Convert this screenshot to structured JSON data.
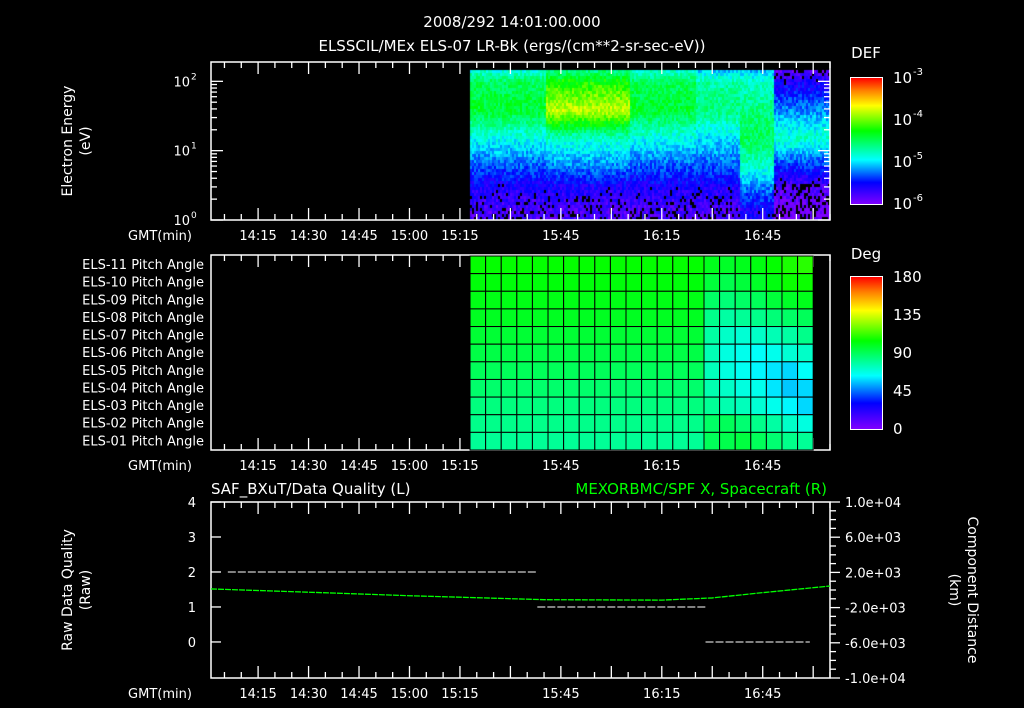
{
  "header": {
    "datetime": "2008/292 14:01:00.000",
    "subtitle": "ELSSCIL/MEx ELS-07 LR-Bk  (ergs/(cm**2-sr-sec-eV))"
  },
  "colors": {
    "background": "#000000",
    "axis": "#ffffff",
    "green_series": "#00ff00"
  },
  "time_axis": {
    "label": "GMT(min)",
    "start_min": 841,
    "end_min": 1025,
    "tick_labels": [
      {
        "t": 855,
        "label": "14:15"
      },
      {
        "t": 870,
        "label": "14:30"
      },
      {
        "t": 885,
        "label": "14:45"
      },
      {
        "t": 900,
        "label": "15:00"
      },
      {
        "t": 915,
        "label": "15:15"
      },
      {
        "t": 945,
        "label": "15:45"
      },
      {
        "t": 975,
        "label": "16:15"
      },
      {
        "t": 1005,
        "label": "16:45"
      }
    ]
  },
  "chart_data": [
    {
      "type": "heatmap",
      "name": "electron-spectrogram",
      "ylabel": "Electron Energy",
      "yunit": "(eV)",
      "yscale": "log",
      "ylim": [
        1,
        190
      ],
      "ytick_labels": [
        {
          "exp": 0,
          "label": "10",
          "sup": "0"
        },
        {
          "exp": 1,
          "label": "10",
          "sup": "1"
        },
        {
          "exp": 2,
          "label": "10",
          "sup": "2"
        }
      ],
      "data_start_min": 918,
      "time_segments_min": [
        918,
        940,
        965,
        985,
        998,
        1008,
        1025
      ],
      "energy_bins_log10": [
        0.15,
        0.5,
        0.8,
        1.2,
        1.6,
        2.0,
        2.25
      ],
      "log10_def": [
        [
          -5.8,
          -5.6,
          -5.3,
          -4.9,
          -4.4,
          -4.5,
          -5.0
        ],
        [
          -5.8,
          -5.6,
          -5.2,
          -4.8,
          -3.8,
          -4.2,
          -4.8
        ],
        [
          -5.8,
          -5.6,
          -5.3,
          -4.9,
          -4.4,
          -4.5,
          -5.0
        ],
        [
          -5.8,
          -5.6,
          -5.3,
          -5.0,
          -4.6,
          -4.7,
          -5.2
        ],
        [
          -5.6,
          -5.2,
          -4.8,
          -4.5,
          -4.6,
          -4.8,
          -5.2
        ],
        [
          -6.0,
          -5.8,
          -5.4,
          -4.8,
          -5.2,
          -5.6,
          -6.0
        ]
      ],
      "colorbar": {
        "title": "DEF",
        "scale": "log",
        "range": [
          -6,
          -3
        ],
        "tick_labels": [
          {
            "label": "10",
            "sup": "-3"
          },
          {
            "label": "10",
            "sup": "-4"
          },
          {
            "label": "10",
            "sup": "-5"
          },
          {
            "label": "10",
            "sup": "-6"
          }
        ]
      }
    },
    {
      "type": "heatmap",
      "name": "pitch-angle-grid",
      "row_labels": [
        "ELS-11 Pitch Angle",
        "ELS-10 Pitch Angle",
        "ELS-09 Pitch Angle",
        "ELS-08 Pitch Angle",
        "ELS-07 Pitch Angle",
        "ELS-06 Pitch Angle",
        "ELS-05 Pitch Angle",
        "ELS-04 Pitch Angle",
        "ELS-03 Pitch Angle",
        "ELS-02 Pitch Angle",
        "ELS-01 Pitch Angle"
      ],
      "data_start_min": 918,
      "data_end_min": 1020,
      "columns": 22,
      "values_deg": [
        [
          105,
          105,
          105,
          105,
          105,
          105,
          105,
          105,
          105,
          105,
          105,
          105,
          105,
          105,
          105,
          100,
          98,
          100,
          102,
          105,
          108,
          110
        ],
        [
          103,
          103,
          103,
          103,
          103,
          103,
          103,
          103,
          103,
          103,
          103,
          103,
          103,
          103,
          103,
          95,
          92,
          95,
          98,
          102,
          106,
          106
        ],
        [
          101,
          101,
          101,
          101,
          101,
          101,
          101,
          101,
          101,
          101,
          101,
          101,
          101,
          101,
          101,
          88,
          85,
          88,
          90,
          95,
          98,
          100
        ],
        [
          99,
          99,
          99,
          99,
          99,
          99,
          99,
          99,
          99,
          99,
          99,
          99,
          99,
          99,
          99,
          82,
          78,
          80,
          82,
          85,
          88,
          90
        ],
        [
          96,
          96,
          96,
          96,
          96,
          96,
          96,
          96,
          96,
          96,
          96,
          96,
          96,
          96,
          96,
          78,
          72,
          70,
          72,
          75,
          78,
          82
        ],
        [
          93,
          93,
          93,
          93,
          93,
          93,
          93,
          93,
          93,
          93,
          93,
          93,
          93,
          93,
          93,
          75,
          68,
          66,
          64,
          66,
          70,
          72
        ],
        [
          90,
          90,
          90,
          90,
          90,
          90,
          90,
          90,
          90,
          90,
          90,
          90,
          90,
          90,
          90,
          74,
          68,
          65,
          62,
          60,
          58,
          64
        ],
        [
          87,
          87,
          87,
          87,
          87,
          87,
          87,
          87,
          87,
          87,
          87,
          87,
          87,
          87,
          87,
          76,
          72,
          68,
          66,
          60,
          56,
          58
        ],
        [
          84,
          84,
          84,
          84,
          84,
          84,
          84,
          84,
          84,
          84,
          84,
          84,
          84,
          84,
          84,
          80,
          76,
          74,
          70,
          66,
          62,
          58
        ],
        [
          82,
          82,
          82,
          82,
          82,
          82,
          82,
          82,
          82,
          82,
          82,
          82,
          82,
          82,
          82,
          88,
          90,
          86,
          82,
          78,
          72,
          68
        ],
        [
          80,
          80,
          80,
          80,
          80,
          80,
          80,
          80,
          80,
          80,
          80,
          80,
          80,
          80,
          80,
          90,
          92,
          94,
          90,
          86,
          82,
          80
        ]
      ],
      "colorbar": {
        "title": "Deg",
        "range": [
          0,
          180
        ],
        "tick_labels": [
          "180",
          "135",
          "90",
          "45",
          "0"
        ]
      }
    },
    {
      "type": "line",
      "name": "data-quality-and-spacecraft-x",
      "title_left": "SAF_BXuT/Data Quality (L)",
      "title_right": "MEXORBMC/SPF X, Spacecraft (R)",
      "ylabel_left": "Raw Data Quality",
      "ylabel_left_unit": "(Raw)",
      "ylabel_right": "Component Distance",
      "ylabel_right_unit": "(km)",
      "ylim_left": [
        -1.03,
        4
      ],
      "ylim_right": [
        -10000,
        10000
      ],
      "yticks_left": [
        "4",
        "3",
        "2",
        "1",
        "0"
      ],
      "yticks_right": [
        "1.0e+04",
        "6.0e+03",
        "2.0e+03",
        "-2.0e+03",
        "-6.0e+03",
        "-1.0e+04"
      ],
      "series": [
        {
          "name": "Data Quality",
          "axis": "left",
          "color": "#ffffff",
          "type": "step",
          "segments": [
            {
              "t0": 846,
              "t1": 938,
              "v": 2
            },
            {
              "t0": 938,
              "t1": 988,
              "v": 1
            },
            {
              "t0": 988,
              "t1": 1019,
              "v": 0
            }
          ]
        },
        {
          "name": "SPF X",
          "axis": "right",
          "color": "#00ff00",
          "x": [
            841,
            870,
            900,
            940,
            975,
            990,
            1005,
            1025
          ],
          "y": [
            120,
            -250,
            -650,
            -1100,
            -1150,
            -900,
            -300,
            450
          ]
        }
      ]
    }
  ]
}
